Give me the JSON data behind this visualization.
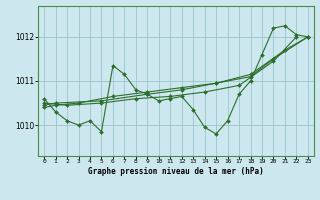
{
  "title": "Graphe pression niveau de la mer (hPa)",
  "bg_color": "#cce8ee",
  "grid_color": "#9dc4cc",
  "line_color": "#2d6e2d",
  "xlim": [
    -0.5,
    23.5
  ],
  "ylim": [
    1009.3,
    1012.7
  ],
  "yticks": [
    1010,
    1011,
    1012
  ],
  "xticks": [
    0,
    1,
    2,
    3,
    4,
    5,
    6,
    7,
    8,
    9,
    10,
    11,
    12,
    13,
    14,
    15,
    16,
    17,
    18,
    19,
    20,
    21,
    22,
    23
  ],
  "series": [
    {
      "x": [
        0,
        1,
        2,
        3,
        4,
        5,
        6,
        7,
        8,
        9,
        10,
        11,
        12,
        13,
        14,
        15,
        16,
        17,
        18,
        19,
        20,
        21,
        22,
        23
      ],
      "y": [
        1010.6,
        1010.3,
        1010.1,
        1010.0,
        1010.1,
        1009.85,
        1011.35,
        1011.15,
        1010.8,
        1010.7,
        1010.55,
        1010.6,
        1010.65,
        1010.35,
        1009.95,
        1009.8,
        1010.1,
        1010.7,
        1011.0,
        1011.6,
        1012.2,
        1012.25,
        1012.05,
        1012.0
      ]
    },
    {
      "x": [
        0,
        1,
        3,
        6,
        9,
        12,
        15,
        18,
        21,
        23
      ],
      "y": [
        1010.4,
        1010.45,
        1010.5,
        1010.65,
        1010.75,
        1010.85,
        1010.95,
        1011.15,
        1011.7,
        1012.0
      ]
    },
    {
      "x": [
        0,
        1,
        5,
        9,
        12,
        15,
        18,
        20,
        23
      ],
      "y": [
        1010.45,
        1010.5,
        1010.55,
        1010.7,
        1010.8,
        1010.95,
        1011.1,
        1011.5,
        1012.0
      ]
    },
    {
      "x": [
        0,
        2,
        5,
        8,
        11,
        14,
        17,
        20,
        22
      ],
      "y": [
        1010.5,
        1010.45,
        1010.5,
        1010.6,
        1010.65,
        1010.75,
        1010.9,
        1011.45,
        1012.0
      ]
    }
  ]
}
